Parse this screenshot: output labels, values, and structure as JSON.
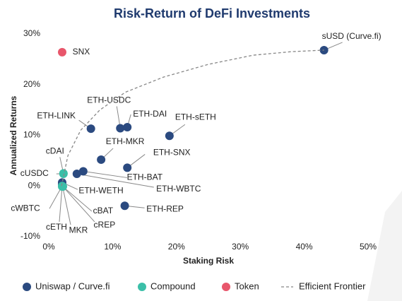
{
  "chart_data": {
    "type": "scatter",
    "title": "Risk-Return of DeFi Investments",
    "x_label": "Staking Risk",
    "y_label": "Annualized Returns",
    "xlim": [
      0,
      50
    ],
    "ylim": [
      -10,
      30
    ],
    "xticks": [
      {
        "value": 0,
        "label": "0%"
      },
      {
        "value": 10,
        "label": "10%"
      },
      {
        "value": 20,
        "label": "20%"
      },
      {
        "value": 30,
        "label": "30%"
      },
      {
        "value": 40,
        "label": "40%"
      },
      {
        "value": 50,
        "label": "50%"
      }
    ],
    "yticks": [
      {
        "value": -10,
        "label": "-10%"
      },
      {
        "value": 0,
        "label": "0%"
      },
      {
        "value": 10,
        "label": "10%"
      },
      {
        "value": 20,
        "label": "20%"
      },
      {
        "value": 30,
        "label": "30%"
      }
    ],
    "series": [
      {
        "name": "Uniswap / Curve.fi",
        "color": "#2b4a80",
        "x": [
          43.1,
          6.6,
          11.2,
          12.3,
          18.9,
          8.2,
          12.3,
          5.4,
          4.4,
          2.1,
          11.9,
          2.1
        ],
        "y": [
          26.8,
          11.3,
          11.4,
          11.6,
          9.9,
          5.2,
          3.6,
          2.9,
          2.4,
          0.7,
          -3.9,
          0.3
        ],
        "labels": [
          "sUSD (Curve.fi)",
          "ETH-LINK",
          "ETH-USDC",
          "ETH-DAI",
          "ETH-sETH",
          "ETH-MKR",
          "ETH-SNX",
          "ETH-BAT",
          "ETH-WBTC",
          "ETH-WETH",
          "ETH-REP",
          "MKR"
        ]
      },
      {
        "name": "Compound",
        "color": "#3bbfa8",
        "x": [
          2.3,
          2.3,
          2.1,
          2.1,
          2.2,
          2.2
        ],
        "y": [
          2.5,
          2.4,
          0.0,
          -0.1,
          -0.1,
          -0.1
        ],
        "labels": [
          "cDAI",
          "cUSDC",
          "cWBTC",
          "cETH",
          "cBAT",
          "cREP"
        ]
      },
      {
        "name": "Token",
        "color": "#e8566b",
        "x": [
          2.1
        ],
        "y": [
          26.4
        ],
        "labels": [
          "SNX"
        ]
      },
      {
        "name": "Efficient Frontier",
        "color": "#888888",
        "line": "dashed",
        "x": [
          2,
          3,
          5,
          8,
          12,
          18,
          25,
          32,
          38,
          43.1
        ],
        "y": [
          0,
          6,
          11,
          15,
          18.5,
          21.5,
          24,
          25.8,
          26.5,
          26.8
        ]
      }
    ]
  }
}
